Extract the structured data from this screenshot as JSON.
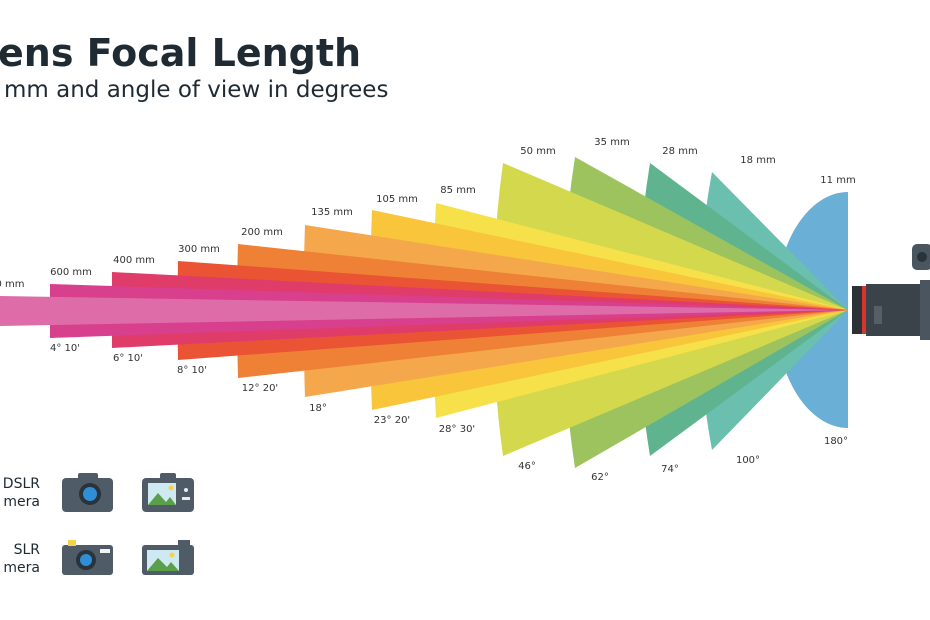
{
  "header": {
    "title": "ens Focal Length",
    "subtitle": "mm and angle of view in degrees"
  },
  "lenses": [
    {
      "focal": "11 mm",
      "angle": "180°"
    },
    {
      "focal": "18 mm",
      "angle": "100°"
    },
    {
      "focal": "28 mm",
      "angle": "74°"
    },
    {
      "focal": "35 mm",
      "angle": "62°"
    },
    {
      "focal": "50 mm",
      "angle": "46°"
    },
    {
      "focal": "85 mm",
      "angle": "28° 30'"
    },
    {
      "focal": "105 mm",
      "angle": "23° 20'"
    },
    {
      "focal": "135 mm",
      "angle": "18°"
    },
    {
      "focal": "200 mm",
      "angle": "12° 20'"
    },
    {
      "focal": "300 mm",
      "angle": "8° 10'"
    },
    {
      "focal": "400 mm",
      "angle": "6° 10'"
    },
    {
      "focal": "600 mm",
      "angle": "4° 10'"
    },
    {
      "focal": "0 mm"
    }
  ],
  "legend": [
    {
      "line1": "DSLR",
      "line2": "mera"
    },
    {
      "line1": "SLR",
      "line2": "mera"
    }
  ]
}
